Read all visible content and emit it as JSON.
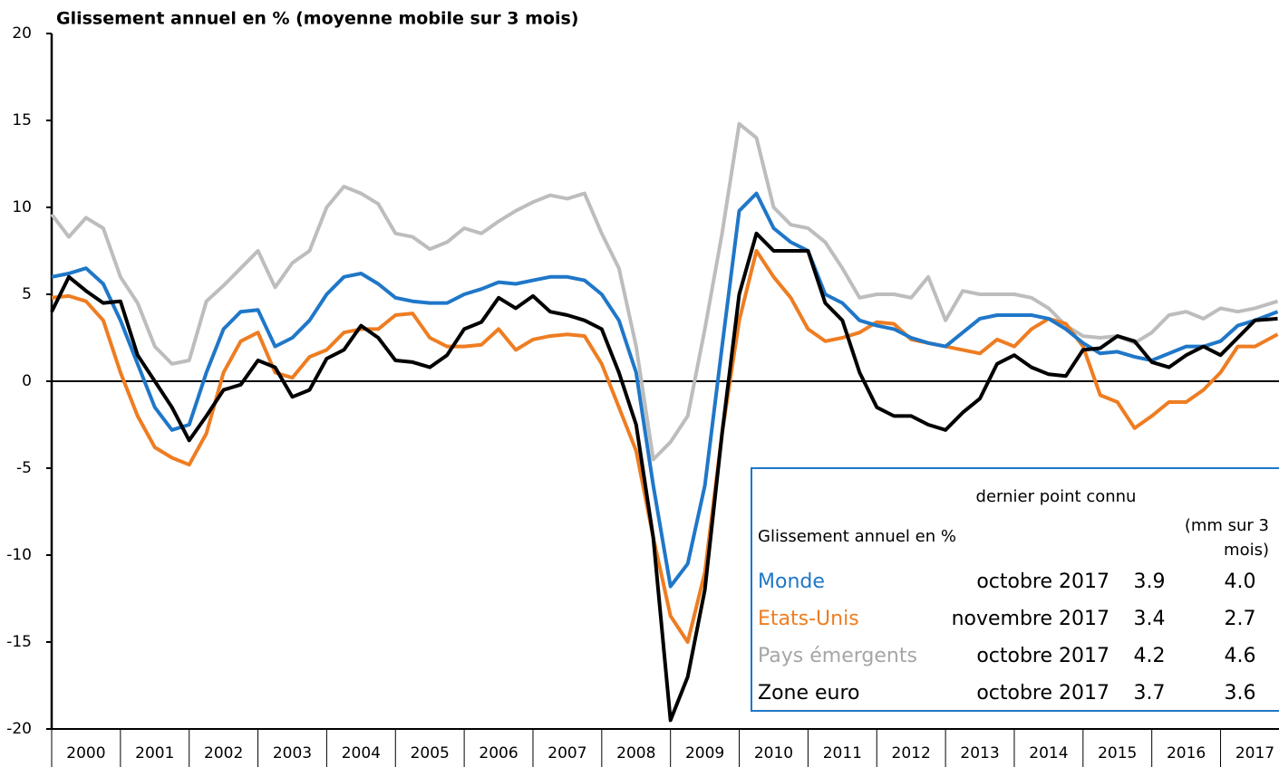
{
  "chart_data": {
    "type": "line",
    "title": "Glissement annuel en % (moyenne mobile sur 3 mois)",
    "x": [
      2000,
      2000.25,
      2000.5,
      2000.75,
      2001,
      2001.25,
      2001.5,
      2001.75,
      2002,
      2002.25,
      2002.5,
      2002.75,
      2003,
      2003.25,
      2003.5,
      2003.75,
      2004,
      2004.25,
      2004.5,
      2004.75,
      2005,
      2005.25,
      2005.5,
      2005.75,
      2006,
      2006.25,
      2006.5,
      2006.75,
      2007,
      2007.25,
      2007.5,
      2007.75,
      2008,
      2008.25,
      2008.5,
      2008.75,
      2009,
      2009.25,
      2009.5,
      2009.75,
      2010,
      2010.25,
      2010.5,
      2010.75,
      2011,
      2011.25,
      2011.5,
      2011.75,
      2012,
      2012.25,
      2012.5,
      2012.75,
      2013,
      2013.25,
      2013.5,
      2013.75,
      2014,
      2014.25,
      2014.5,
      2014.75,
      2015,
      2015.25,
      2015.5,
      2015.75,
      2016,
      2016.25,
      2016.5,
      2016.75,
      2017,
      2017.25,
      2017.5,
      2017.83
    ],
    "xlim": [
      2000,
      2017.85
    ],
    "xticks": [
      2000,
      2001,
      2002,
      2003,
      2004,
      2005,
      2006,
      2007,
      2008,
      2009,
      2010,
      2011,
      2012,
      2013,
      2014,
      2015,
      2016,
      2017
    ],
    "ylim": [
      -20,
      20
    ],
    "yticks": [
      20,
      15,
      10,
      5,
      0,
      -5,
      -10,
      -15,
      -20
    ],
    "series": [
      {
        "name": "Monde",
        "color": "#1f77c8",
        "values": [
          6.0,
          6.2,
          6.5,
          5.6,
          3.5,
          1.0,
          -1.5,
          -2.8,
          -2.5,
          0.5,
          3.0,
          4.0,
          4.1,
          2.0,
          2.5,
          3.5,
          5.0,
          6.0,
          6.2,
          5.6,
          4.8,
          4.6,
          4.5,
          4.5,
          5.0,
          5.3,
          5.7,
          5.6,
          5.8,
          6.0,
          6.0,
          5.8,
          5.0,
          3.5,
          0.5,
          -6,
          -11.8,
          -10.5,
          -6,
          2,
          9.8,
          10.8,
          8.8,
          8.0,
          7.5,
          5.0,
          4.5,
          3.5,
          3.2,
          3.0,
          2.5,
          2.2,
          2.0,
          2.8,
          3.6,
          3.8,
          3.8,
          3.8,
          3.6,
          3.0,
          2.2,
          1.6,
          1.7,
          1.4,
          1.2,
          1.6,
          2.0,
          2.0,
          2.3,
          3.2,
          3.5,
          4.0
        ]
      },
      {
        "name": "Etats-Unis",
        "color": "#ee7d22",
        "values": [
          4.8,
          4.9,
          4.6,
          3.5,
          0.5,
          -2.0,
          -3.8,
          -4.4,
          -4.8,
          -3.0,
          0.5,
          2.3,
          2.8,
          0.5,
          0.2,
          1.4,
          1.8,
          2.8,
          3.0,
          3.0,
          3.8,
          3.9,
          2.5,
          2.0,
          2.0,
          2.1,
          3.0,
          1.8,
          2.4,
          2.6,
          2.7,
          2.6,
          1.0,
          -1.5,
          -4.0,
          -9,
          -13.5,
          -15.0,
          -11,
          -3,
          3.5,
          7.5,
          6.0,
          4.8,
          3.0,
          2.3,
          2.5,
          2.8,
          3.4,
          3.3,
          2.4,
          2.2,
          2.0,
          1.8,
          1.6,
          2.4,
          2.0,
          3.0,
          3.6,
          3.3,
          2.0,
          -0.8,
          -1.2,
          -2.7,
          -2.0,
          -1.2,
          -1.2,
          -0.5,
          0.5,
          2.0,
          2.0,
          2.7
        ]
      },
      {
        "name": "Pays émergents",
        "color": "#bdbdbd",
        "values": [
          9.6,
          8.3,
          9.4,
          8.8,
          6.0,
          4.5,
          2.0,
          1.0,
          1.2,
          4.6,
          5.5,
          6.5,
          7.5,
          5.4,
          6.8,
          7.5,
          10.0,
          11.2,
          10.8,
          10.2,
          8.5,
          8.3,
          7.6,
          8.0,
          8.8,
          8.5,
          9.2,
          9.8,
          10.3,
          10.7,
          10.5,
          10.8,
          8.5,
          6.5,
          2.0,
          -4.5,
          -3.5,
          -2.0,
          3.0,
          8.5,
          14.8,
          14.0,
          10.0,
          9.0,
          8.8,
          8.0,
          6.5,
          4.8,
          5.0,
          5.0,
          4.8,
          6.0,
          3.5,
          5.2,
          5.0,
          5.0,
          5.0,
          4.8,
          4.2,
          3.2,
          2.6,
          2.5,
          2.6,
          2.2,
          2.8,
          3.8,
          4.0,
          3.6,
          4.2,
          4.0,
          4.2,
          4.6
        ]
      },
      {
        "name": "Zone euro",
        "color": "#000000",
        "values": [
          4.0,
          6.0,
          5.2,
          4.5,
          4.6,
          1.5,
          0.0,
          -1.5,
          -3.4,
          -2.0,
          -0.5,
          -0.2,
          1.2,
          0.8,
          -0.9,
          -0.5,
          1.3,
          1.8,
          3.2,
          2.5,
          1.2,
          1.1,
          0.8,
          1.5,
          3.0,
          3.4,
          4.8,
          4.2,
          4.9,
          4.0,
          3.8,
          3.5,
          3.0,
          0.5,
          -2.5,
          -9,
          -19.5,
          -17,
          -12,
          -3,
          5.0,
          8.5,
          7.5,
          7.5,
          7.5,
          4.5,
          3.5,
          0.5,
          -1.5,
          -2.0,
          -2.0,
          -2.5,
          -2.8,
          -1.8,
          -1.0,
          1.0,
          1.5,
          0.8,
          0.4,
          0.3,
          1.8,
          1.9,
          2.6,
          2.3,
          1.1,
          0.8,
          1.5,
          2.0,
          1.5,
          2.5,
          3.5,
          3.6
        ]
      }
    ],
    "table": {
      "header": "dernier point connu",
      "label": "Glissement annuel en %",
      "mm_header": [
        "(mm sur 3",
        "mois)"
      ],
      "rows": [
        [
          "octobre 2017",
          "3.9",
          "4.0"
        ],
        [
          "novembre 2017",
          "3.4",
          "2.7"
        ],
        [
          "octobre 2017",
          "4.2",
          "4.6"
        ],
        [
          "octobre 2017",
          "3.7",
          "3.6"
        ]
      ]
    }
  }
}
